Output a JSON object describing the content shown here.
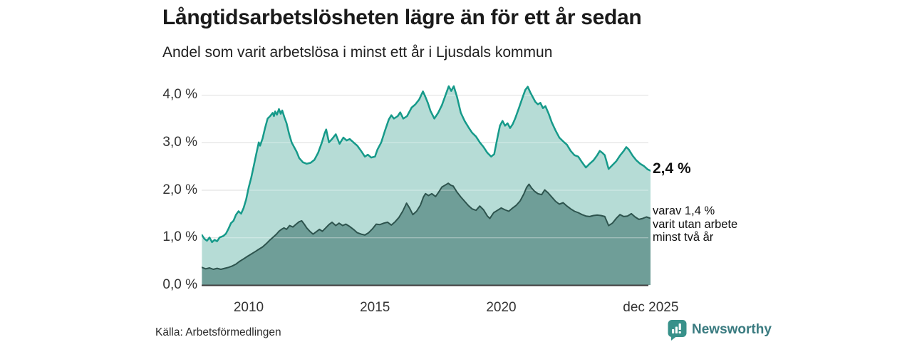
{
  "title": "Långtidsarbetslösheten lägre än för ett år sedan",
  "subtitle": "Andel som varit arbetslösa i minst ett år i Ljusdals kommun",
  "source": "Källa: Arbetsförmedlingen",
  "branding": {
    "name": "Newsworthy",
    "icon": "bar-chart-bubble-icon",
    "icon_bg": "#38918a",
    "text_color": "#3a7b80"
  },
  "annotations": {
    "end_label": "2,4 %",
    "note_lines": [
      "varav 1,4 %",
      "varit utan arbete",
      "minst två år"
    ]
  },
  "colors": {
    "line_total": "#169a8a",
    "fill_total": "#b6dcd6",
    "line_two_years": "#2e544e",
    "fill_two_years": "#6f9e98",
    "gridline": "#dedede",
    "gridline_over_fill": "rgba(255,255,255,0.45)",
    "baseline": "#3e3e3e",
    "text": "#1a1a1a"
  },
  "chart_data": {
    "type": "area",
    "title": "Långtidsarbetslösheten lägre än för ett år sedan",
    "subtitle": "Andel som varit arbetslösa i minst ett år i Ljusdals kommun",
    "xlabel": "",
    "ylabel": "",
    "xlim": [
      2008.1,
      2025.95
    ],
    "ylim": [
      0,
      4.3
    ],
    "grid": true,
    "legend_position": "none",
    "y_ticks": [
      {
        "value": 0,
        "label": "0,0 %"
      },
      {
        "value": 1,
        "label": "1,0 %"
      },
      {
        "value": 2,
        "label": "2,0 %"
      },
      {
        "value": 3,
        "label": "3,0 %"
      },
      {
        "value": 4,
        "label": "4,0 %"
      }
    ],
    "x_ticks": [
      {
        "t": 2010,
        "label": "2010"
      },
      {
        "t": 2015,
        "label": "2015"
      },
      {
        "t": 2020,
        "label": "2020"
      },
      {
        "t": 2025.92,
        "label": "dec 2025"
      }
    ],
    "series": [
      {
        "name": "Arbetslösa minst ett år",
        "end_value": 2.4,
        "end_label": "2,4 %",
        "points": [
          [
            2008.15,
            1.05
          ],
          [
            2008.25,
            0.97
          ],
          [
            2008.35,
            0.93
          ],
          [
            2008.45,
            1.0
          ],
          [
            2008.55,
            0.9
          ],
          [
            2008.65,
            0.95
          ],
          [
            2008.75,
            0.92
          ],
          [
            2008.85,
            1.0
          ],
          [
            2009.0,
            1.03
          ],
          [
            2009.1,
            1.08
          ],
          [
            2009.2,
            1.18
          ],
          [
            2009.3,
            1.3
          ],
          [
            2009.4,
            1.35
          ],
          [
            2009.5,
            1.48
          ],
          [
            2009.6,
            1.55
          ],
          [
            2009.7,
            1.5
          ],
          [
            2009.8,
            1.62
          ],
          [
            2009.9,
            1.8
          ],
          [
            2010.0,
            2.05
          ],
          [
            2010.1,
            2.25
          ],
          [
            2010.2,
            2.5
          ],
          [
            2010.3,
            2.75
          ],
          [
            2010.4,
            3.0
          ],
          [
            2010.45,
            2.93
          ],
          [
            2010.55,
            3.08
          ],
          [
            2010.65,
            3.3
          ],
          [
            2010.75,
            3.5
          ],
          [
            2010.85,
            3.55
          ],
          [
            2010.95,
            3.62
          ],
          [
            2011.0,
            3.55
          ],
          [
            2011.05,
            3.65
          ],
          [
            2011.12,
            3.58
          ],
          [
            2011.2,
            3.7
          ],
          [
            2011.27,
            3.6
          ],
          [
            2011.33,
            3.67
          ],
          [
            2011.42,
            3.52
          ],
          [
            2011.5,
            3.4
          ],
          [
            2011.6,
            3.18
          ],
          [
            2011.7,
            3.0
          ],
          [
            2011.8,
            2.9
          ],
          [
            2011.9,
            2.8
          ],
          [
            2012.0,
            2.67
          ],
          [
            2012.15,
            2.58
          ],
          [
            2012.3,
            2.55
          ],
          [
            2012.45,
            2.57
          ],
          [
            2012.6,
            2.63
          ],
          [
            2012.75,
            2.78
          ],
          [
            2012.9,
            3.0
          ],
          [
            2013.0,
            3.18
          ],
          [
            2013.07,
            3.27
          ],
          [
            2013.18,
            3.0
          ],
          [
            2013.3,
            3.07
          ],
          [
            2013.45,
            3.17
          ],
          [
            2013.6,
            2.97
          ],
          [
            2013.75,
            3.1
          ],
          [
            2013.88,
            3.04
          ],
          [
            2014.0,
            3.07
          ],
          [
            2014.15,
            3.0
          ],
          [
            2014.3,
            2.93
          ],
          [
            2014.45,
            2.82
          ],
          [
            2014.6,
            2.7
          ],
          [
            2014.72,
            2.74
          ],
          [
            2014.85,
            2.68
          ],
          [
            2015.0,
            2.7
          ],
          [
            2015.1,
            2.85
          ],
          [
            2015.25,
            3.0
          ],
          [
            2015.4,
            3.25
          ],
          [
            2015.55,
            3.48
          ],
          [
            2015.65,
            3.57
          ],
          [
            2015.75,
            3.5
          ],
          [
            2015.9,
            3.55
          ],
          [
            2016.0,
            3.63
          ],
          [
            2016.12,
            3.5
          ],
          [
            2016.27,
            3.55
          ],
          [
            2016.45,
            3.73
          ],
          [
            2016.6,
            3.8
          ],
          [
            2016.75,
            3.9
          ],
          [
            2016.9,
            4.07
          ],
          [
            2017.0,
            3.95
          ],
          [
            2017.1,
            3.82
          ],
          [
            2017.2,
            3.66
          ],
          [
            2017.35,
            3.5
          ],
          [
            2017.5,
            3.62
          ],
          [
            2017.65,
            3.78
          ],
          [
            2017.8,
            4.0
          ],
          [
            2017.92,
            4.18
          ],
          [
            2018.02,
            4.08
          ],
          [
            2018.12,
            4.18
          ],
          [
            2018.25,
            3.95
          ],
          [
            2018.4,
            3.62
          ],
          [
            2018.55,
            3.45
          ],
          [
            2018.7,
            3.32
          ],
          [
            2018.85,
            3.2
          ],
          [
            2019.0,
            3.12
          ],
          [
            2019.15,
            3.0
          ],
          [
            2019.3,
            2.9
          ],
          [
            2019.45,
            2.78
          ],
          [
            2019.6,
            2.7
          ],
          [
            2019.72,
            2.75
          ],
          [
            2019.85,
            3.1
          ],
          [
            2019.95,
            3.35
          ],
          [
            2020.05,
            3.45
          ],
          [
            2020.15,
            3.35
          ],
          [
            2020.25,
            3.4
          ],
          [
            2020.35,
            3.3
          ],
          [
            2020.45,
            3.38
          ],
          [
            2020.55,
            3.5
          ],
          [
            2020.7,
            3.72
          ],
          [
            2020.85,
            3.95
          ],
          [
            2020.95,
            4.1
          ],
          [
            2021.05,
            4.17
          ],
          [
            2021.15,
            4.05
          ],
          [
            2021.25,
            3.95
          ],
          [
            2021.35,
            3.85
          ],
          [
            2021.45,
            3.8
          ],
          [
            2021.55,
            3.83
          ],
          [
            2021.65,
            3.72
          ],
          [
            2021.75,
            3.76
          ],
          [
            2021.88,
            3.6
          ],
          [
            2022.0,
            3.42
          ],
          [
            2022.15,
            3.25
          ],
          [
            2022.3,
            3.1
          ],
          [
            2022.45,
            3.02
          ],
          [
            2022.6,
            2.95
          ],
          [
            2022.75,
            2.82
          ],
          [
            2022.9,
            2.73
          ],
          [
            2023.05,
            2.7
          ],
          [
            2023.2,
            2.58
          ],
          [
            2023.35,
            2.47
          ],
          [
            2023.5,
            2.55
          ],
          [
            2023.65,
            2.62
          ],
          [
            2023.8,
            2.73
          ],
          [
            2023.9,
            2.82
          ],
          [
            2024.0,
            2.78
          ],
          [
            2024.1,
            2.73
          ],
          [
            2024.25,
            2.44
          ],
          [
            2024.4,
            2.52
          ],
          [
            2024.55,
            2.6
          ],
          [
            2024.7,
            2.72
          ],
          [
            2024.85,
            2.82
          ],
          [
            2024.95,
            2.9
          ],
          [
            2025.05,
            2.85
          ],
          [
            2025.2,
            2.72
          ],
          [
            2025.35,
            2.62
          ],
          [
            2025.5,
            2.55
          ],
          [
            2025.65,
            2.5
          ],
          [
            2025.8,
            2.43
          ],
          [
            2025.92,
            2.4
          ]
        ]
      },
      {
        "name": "Utan arbete minst två år",
        "end_value": 1.4,
        "end_label": "varav 1,4 % varit utan arbete minst två år",
        "points": [
          [
            2008.15,
            0.37
          ],
          [
            2008.3,
            0.34
          ],
          [
            2008.45,
            0.36
          ],
          [
            2008.6,
            0.33
          ],
          [
            2008.75,
            0.35
          ],
          [
            2008.9,
            0.33
          ],
          [
            2009.05,
            0.35
          ],
          [
            2009.2,
            0.37
          ],
          [
            2009.35,
            0.4
          ],
          [
            2009.5,
            0.44
          ],
          [
            2009.65,
            0.5
          ],
          [
            2009.8,
            0.55
          ],
          [
            2009.95,
            0.6
          ],
          [
            2010.1,
            0.65
          ],
          [
            2010.25,
            0.7
          ],
          [
            2010.4,
            0.75
          ],
          [
            2010.55,
            0.8
          ],
          [
            2010.7,
            0.87
          ],
          [
            2010.85,
            0.95
          ],
          [
            2011.0,
            1.02
          ],
          [
            2011.1,
            1.07
          ],
          [
            2011.2,
            1.13
          ],
          [
            2011.3,
            1.17
          ],
          [
            2011.4,
            1.2
          ],
          [
            2011.5,
            1.17
          ],
          [
            2011.62,
            1.25
          ],
          [
            2011.75,
            1.22
          ],
          [
            2011.88,
            1.28
          ],
          [
            2012.0,
            1.33
          ],
          [
            2012.1,
            1.35
          ],
          [
            2012.2,
            1.28
          ],
          [
            2012.3,
            1.2
          ],
          [
            2012.42,
            1.13
          ],
          [
            2012.55,
            1.07
          ],
          [
            2012.68,
            1.12
          ],
          [
            2012.8,
            1.17
          ],
          [
            2012.92,
            1.13
          ],
          [
            2013.05,
            1.2
          ],
          [
            2013.18,
            1.27
          ],
          [
            2013.3,
            1.32
          ],
          [
            2013.45,
            1.25
          ],
          [
            2013.58,
            1.3
          ],
          [
            2013.72,
            1.25
          ],
          [
            2013.85,
            1.28
          ],
          [
            2014.0,
            1.23
          ],
          [
            2014.15,
            1.17
          ],
          [
            2014.3,
            1.1
          ],
          [
            2014.45,
            1.07
          ],
          [
            2014.6,
            1.05
          ],
          [
            2014.75,
            1.1
          ],
          [
            2014.9,
            1.18
          ],
          [
            2015.05,
            1.28
          ],
          [
            2015.2,
            1.27
          ],
          [
            2015.35,
            1.3
          ],
          [
            2015.5,
            1.32
          ],
          [
            2015.65,
            1.26
          ],
          [
            2015.8,
            1.33
          ],
          [
            2015.95,
            1.42
          ],
          [
            2016.1,
            1.55
          ],
          [
            2016.25,
            1.72
          ],
          [
            2016.37,
            1.62
          ],
          [
            2016.5,
            1.48
          ],
          [
            2016.65,
            1.55
          ],
          [
            2016.8,
            1.68
          ],
          [
            2016.92,
            1.85
          ],
          [
            2017.0,
            1.92
          ],
          [
            2017.12,
            1.88
          ],
          [
            2017.25,
            1.92
          ],
          [
            2017.4,
            1.86
          ],
          [
            2017.52,
            1.95
          ],
          [
            2017.65,
            2.06
          ],
          [
            2017.78,
            2.1
          ],
          [
            2017.9,
            2.14
          ],
          [
            2018.0,
            2.1
          ],
          [
            2018.1,
            2.08
          ],
          [
            2018.25,
            1.95
          ],
          [
            2018.4,
            1.85
          ],
          [
            2018.55,
            1.76
          ],
          [
            2018.7,
            1.67
          ],
          [
            2018.85,
            1.6
          ],
          [
            2019.0,
            1.57
          ],
          [
            2019.15,
            1.66
          ],
          [
            2019.3,
            1.58
          ],
          [
            2019.45,
            1.45
          ],
          [
            2019.55,
            1.4
          ],
          [
            2019.7,
            1.52
          ],
          [
            2019.85,
            1.57
          ],
          [
            2020.0,
            1.62
          ],
          [
            2020.15,
            1.58
          ],
          [
            2020.3,
            1.55
          ],
          [
            2020.45,
            1.62
          ],
          [
            2020.6,
            1.68
          ],
          [
            2020.75,
            1.77
          ],
          [
            2020.9,
            1.92
          ],
          [
            2021.0,
            2.05
          ],
          [
            2021.1,
            2.12
          ],
          [
            2021.2,
            2.04
          ],
          [
            2021.32,
            1.97
          ],
          [
            2021.45,
            1.92
          ],
          [
            2021.6,
            1.9
          ],
          [
            2021.72,
            2.0
          ],
          [
            2021.85,
            1.94
          ],
          [
            2022.0,
            1.85
          ],
          [
            2022.15,
            1.76
          ],
          [
            2022.3,
            1.7
          ],
          [
            2022.45,
            1.73
          ],
          [
            2022.6,
            1.66
          ],
          [
            2022.75,
            1.6
          ],
          [
            2022.9,
            1.55
          ],
          [
            2023.05,
            1.52
          ],
          [
            2023.2,
            1.48
          ],
          [
            2023.35,
            1.45
          ],
          [
            2023.5,
            1.44
          ],
          [
            2023.65,
            1.46
          ],
          [
            2023.8,
            1.47
          ],
          [
            2023.95,
            1.46
          ],
          [
            2024.1,
            1.44
          ],
          [
            2024.25,
            1.25
          ],
          [
            2024.4,
            1.3
          ],
          [
            2024.55,
            1.4
          ],
          [
            2024.7,
            1.48
          ],
          [
            2024.85,
            1.44
          ],
          [
            2025.0,
            1.45
          ],
          [
            2025.15,
            1.5
          ],
          [
            2025.3,
            1.43
          ],
          [
            2025.45,
            1.38
          ],
          [
            2025.6,
            1.4
          ],
          [
            2025.75,
            1.43
          ],
          [
            2025.92,
            1.4
          ]
        ]
      }
    ]
  }
}
